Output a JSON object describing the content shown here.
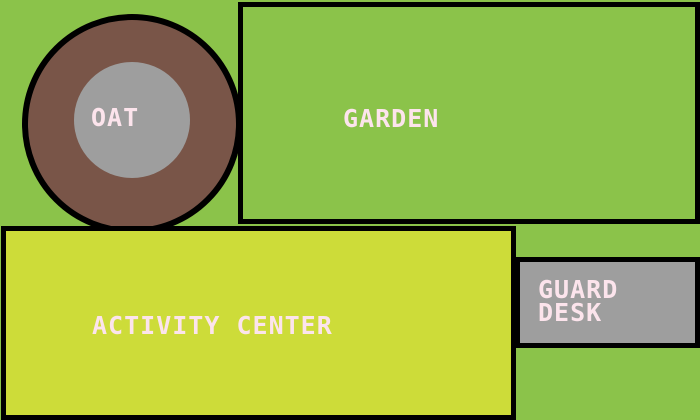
{
  "map": {
    "background_color": "#8bc34a",
    "border_color": "#000000",
    "zones": {
      "garden": {
        "label": "GARDEN",
        "fill": "#8bc34a",
        "text_color": "#fce4ec"
      },
      "activity_center": {
        "label": "ACTIVITY CENTER",
        "fill": "#cddc39",
        "text_color": "#fce4ec"
      },
      "guard_desk": {
        "label_line1": "GUARD",
        "label_line2": "DESK",
        "fill": "#9e9e9e",
        "text_color": "#fce4ec"
      },
      "oat": {
        "label": "OAT",
        "ring_fill": "#795548",
        "core_fill": "#9e9e9e",
        "text_color": "#fce4ec"
      }
    }
  }
}
